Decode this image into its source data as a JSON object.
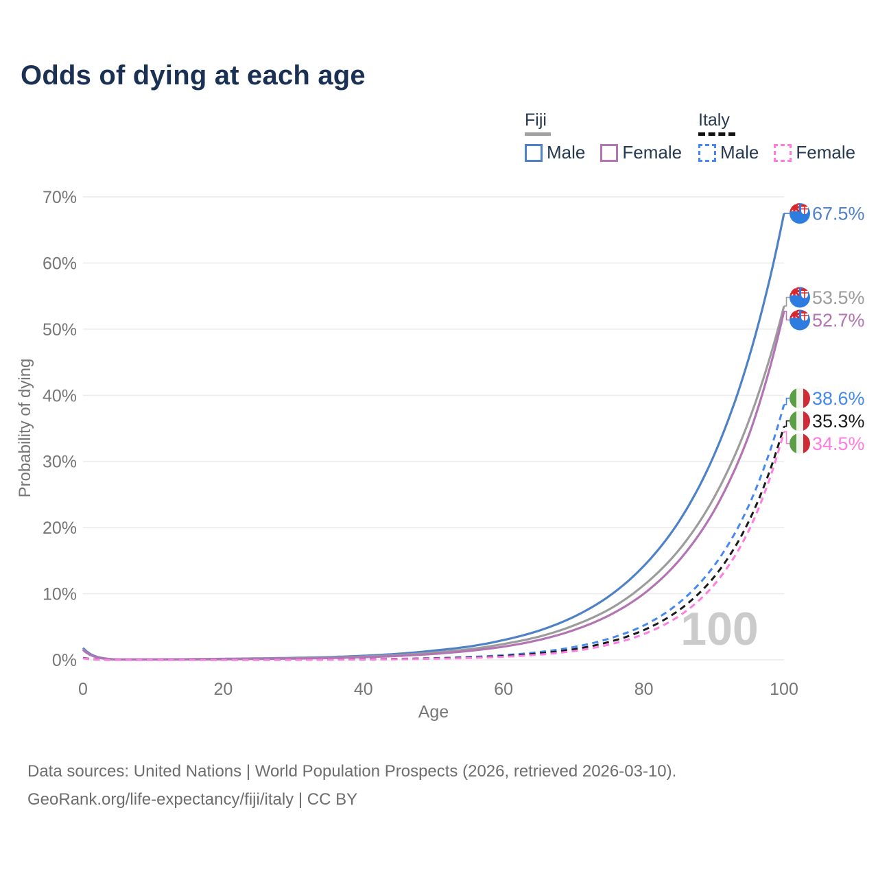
{
  "title": "Odds of dying at each age",
  "legend": {
    "groups": [
      {
        "country": "Fiji",
        "line_style": "solid",
        "underline_color": "#a0a0a0",
        "items": [
          {
            "label": "Male",
            "color": "#4f81c7",
            "style": "solid"
          },
          {
            "label": "Female",
            "color": "#b274b2",
            "style": "solid"
          }
        ]
      },
      {
        "country": "Italy",
        "line_style": "dashed",
        "underline_color": "#111111",
        "items": [
          {
            "label": "Male",
            "color": "#4688f2",
            "style": "dashed"
          },
          {
            "label": "Female",
            "color": "#ff7ce0",
            "style": "dashed"
          }
        ]
      }
    ]
  },
  "chart_data": {
    "type": "line",
    "title": "Odds of dying at each age",
    "xlabel": "Age",
    "ylabel": "Probability of dying",
    "xlim": [
      0,
      100
    ],
    "ylim": [
      0,
      70
    ],
    "xticks": [
      0,
      20,
      40,
      60,
      80,
      100
    ],
    "ytick_labels": [
      "0%",
      "10%",
      "20%",
      "30%",
      "40%",
      "50%",
      "60%",
      "70%"
    ],
    "grid": "horizontal",
    "watermark": "100",
    "x_ages": [
      0,
      5,
      10,
      15,
      20,
      25,
      30,
      35,
      40,
      45,
      50,
      55,
      60,
      65,
      70,
      75,
      80,
      85,
      90,
      95,
      100
    ],
    "series": [
      {
        "name": "Fiji Male",
        "country": "fiji",
        "sex": "male",
        "color": "#4f81c7",
        "dashed": false,
        "end_label": "67.5%",
        "end_value": 67.5,
        "values": [
          1.8,
          0.06,
          0.07,
          0.1,
          0.16,
          0.22,
          0.3,
          0.42,
          0.62,
          0.92,
          1.4,
          2.0,
          3.0,
          4.4,
          6.5,
          9.6,
          14.2,
          20.9,
          30.9,
          45.7,
          67.5
        ]
      },
      {
        "name": "Fiji Both sexes",
        "country": "fiji",
        "sex": "both",
        "color": "#9c9c9c",
        "dashed": false,
        "end_label": "53.5%",
        "end_value": 53.5,
        "values": [
          1.6,
          0.05,
          0.06,
          0.08,
          0.13,
          0.18,
          0.24,
          0.34,
          0.5,
          0.74,
          1.1,
          1.6,
          2.4,
          3.5,
          5.2,
          7.6,
          11.3,
          16.6,
          24.5,
          36.2,
          53.5
        ]
      },
      {
        "name": "Fiji Female",
        "country": "fiji",
        "sex": "female",
        "color": "#b274b2",
        "dashed": false,
        "end_label": "52.7%",
        "end_value": 52.7,
        "values": [
          1.5,
          0.05,
          0.05,
          0.07,
          0.1,
          0.14,
          0.19,
          0.27,
          0.4,
          0.6,
          0.9,
          1.35,
          2.0,
          3.0,
          4.5,
          6.7,
          10.0,
          15.0,
          22.5,
          34.0,
          52.7
        ]
      },
      {
        "name": "Italy Male",
        "country": "italy",
        "sex": "male",
        "color": "#4688f2",
        "dashed": true,
        "end_label": "38.6%",
        "end_value": 38.6,
        "values": [
          0.3,
          0.01,
          0.01,
          0.02,
          0.03,
          0.03,
          0.04,
          0.06,
          0.1,
          0.16,
          0.26,
          0.43,
          0.71,
          1.17,
          1.93,
          3.2,
          5.2,
          8.6,
          14.2,
          23.4,
          38.6
        ]
      },
      {
        "name": "Italy Both sexes",
        "country": "italy",
        "sex": "both",
        "color": "#1a1a1a",
        "dashed": true,
        "end_label": "35.3%",
        "end_value": 35.3,
        "values": [
          0.27,
          0.01,
          0.01,
          0.015,
          0.025,
          0.028,
          0.035,
          0.05,
          0.08,
          0.13,
          0.21,
          0.35,
          0.58,
          0.97,
          1.6,
          2.7,
          4.5,
          7.5,
          12.5,
          21.0,
          35.3
        ]
      },
      {
        "name": "Italy Female",
        "country": "italy",
        "sex": "female",
        "color": "#ff7ce0",
        "dashed": true,
        "end_label": "34.5%",
        "end_value": 34.5,
        "values": [
          0.24,
          0.008,
          0.008,
          0.012,
          0.02,
          0.022,
          0.028,
          0.04,
          0.06,
          0.1,
          0.17,
          0.28,
          0.47,
          0.79,
          1.33,
          2.3,
          3.9,
          6.6,
          11.3,
          19.6,
          34.5
        ]
      }
    ],
    "colors": {
      "gridline": "#ececec",
      "tick_text": "#767676",
      "watermark": "#cbcbcb",
      "fiji_flag_blue": "#2f7ce0",
      "flag_red": "#d7282f",
      "italy_green": "#5b9e45",
      "italy_red": "#ce2b37"
    }
  },
  "footer": {
    "line1": "Data sources: United Nations | World Population Prospects (2026, retrieved 2026-03-10).",
    "line2": "GeoRank.org/life-expectancy/fiji/italy | CC BY"
  }
}
